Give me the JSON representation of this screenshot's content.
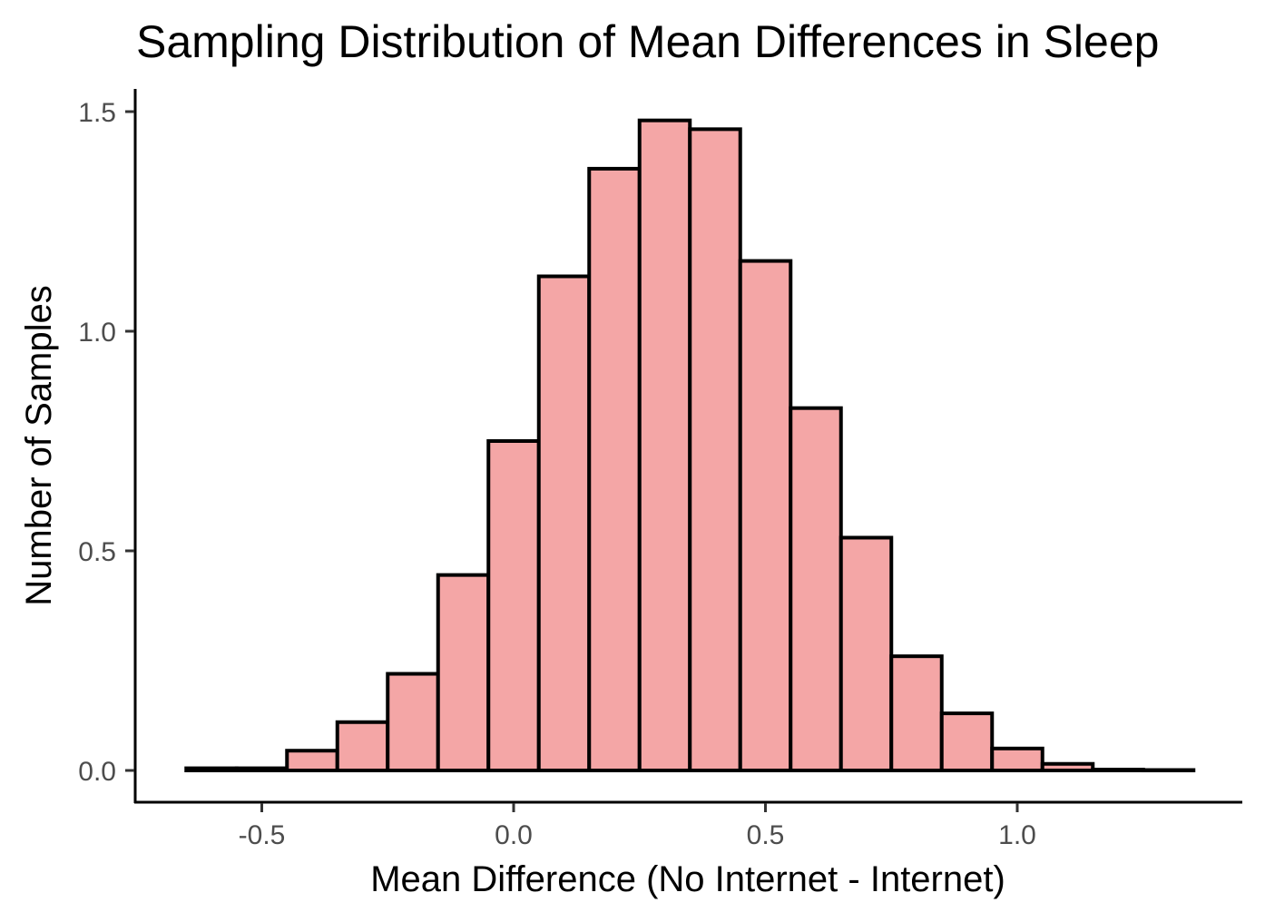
{
  "chart_data": {
    "type": "bar",
    "title": "Sampling Distribution of Mean Differences in Sleep",
    "xlabel": "Mean Difference (No Internet - Internet)",
    "ylabel": "Number of Samples",
    "xlim": [
      -0.75,
      1.45
    ],
    "ylim": [
      -0.07,
      1.55
    ],
    "bin_width": 0.1,
    "bins": [
      {
        "x": -0.6,
        "y": 0.005
      },
      {
        "x": -0.5,
        "y": 0.005
      },
      {
        "x": -0.4,
        "y": 0.045
      },
      {
        "x": -0.3,
        "y": 0.11
      },
      {
        "x": -0.2,
        "y": 0.22
      },
      {
        "x": -0.1,
        "y": 0.445
      },
      {
        "x": 0.0,
        "y": 0.75
      },
      {
        "x": 0.1,
        "y": 1.125
      },
      {
        "x": 0.2,
        "y": 1.37
      },
      {
        "x": 0.3,
        "y": 1.48
      },
      {
        "x": 0.4,
        "y": 1.46
      },
      {
        "x": 0.5,
        "y": 1.16
      },
      {
        "x": 0.6,
        "y": 0.825
      },
      {
        "x": 0.7,
        "y": 0.53
      },
      {
        "x": 0.8,
        "y": 0.26
      },
      {
        "x": 0.9,
        "y": 0.13
      },
      {
        "x": 1.0,
        "y": 0.05
      },
      {
        "x": 1.1,
        "y": 0.015
      },
      {
        "x": 1.2,
        "y": 0.002
      },
      {
        "x": 1.3,
        "y": 0.001
      }
    ],
    "x_ticks": [
      {
        "value": -0.5,
        "label": "-0.5"
      },
      {
        "value": 0.0,
        "label": "0.0"
      },
      {
        "value": 0.5,
        "label": "0.5"
      },
      {
        "value": 1.0,
        "label": "1.0"
      }
    ],
    "y_ticks": [
      {
        "value": 0.0,
        "label": "0.0"
      },
      {
        "value": 0.5,
        "label": "0.5"
      },
      {
        "value": 1.0,
        "label": "1.0"
      },
      {
        "value": 1.5,
        "label": "1.5"
      }
    ],
    "bar_fill": "#f4a6a6",
    "bar_stroke": "#000000",
    "grid": false,
    "legend": "none"
  }
}
